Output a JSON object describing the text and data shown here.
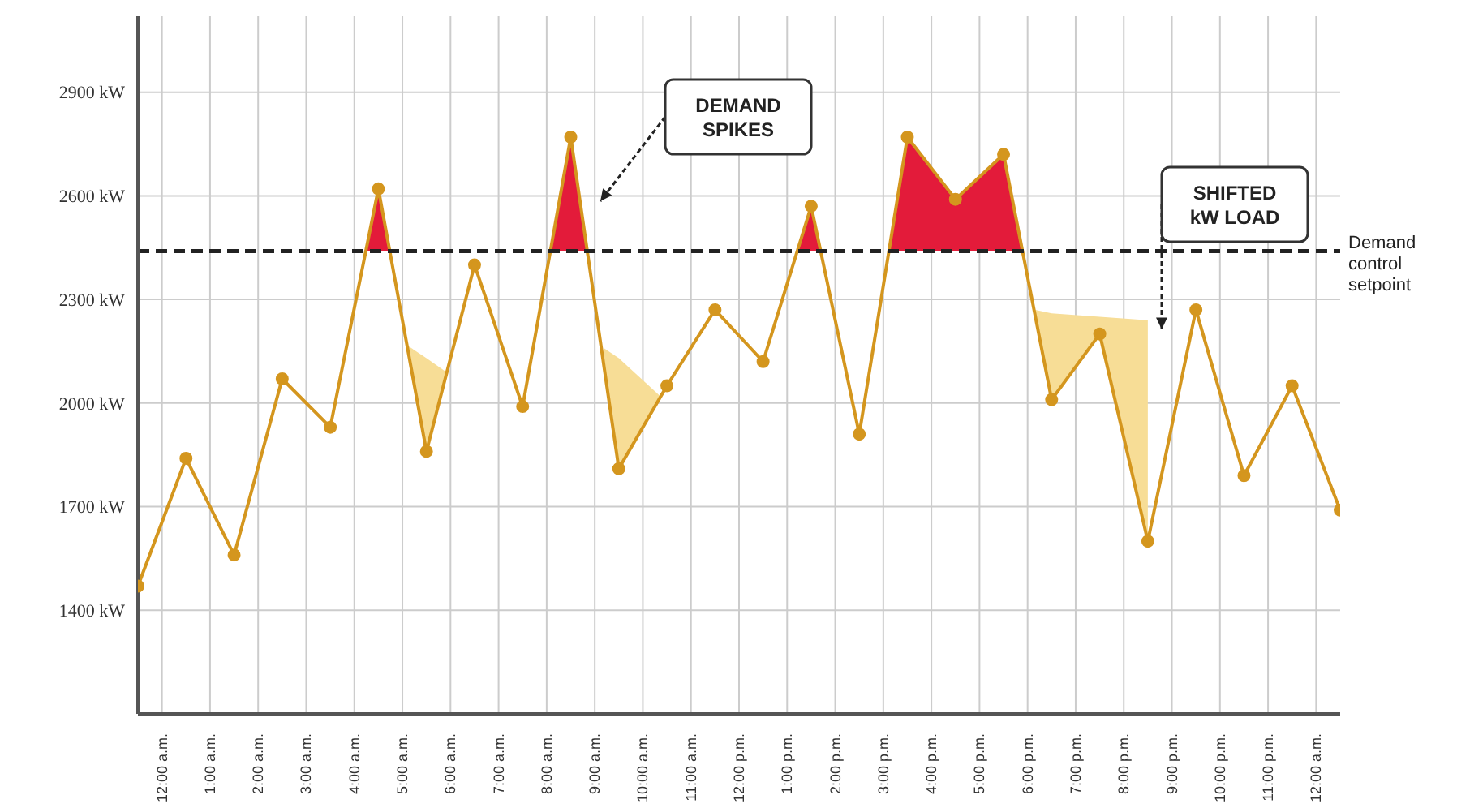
{
  "chart_data": {
    "type": "line",
    "x": [
      -0.5,
      0.5,
      1.5,
      2.5,
      3.5,
      4.5,
      5.5,
      6.5,
      7.5,
      8.5,
      9.5,
      10.5,
      11.5,
      12.5,
      13.5,
      14.5,
      15.5,
      16.5,
      17.5,
      18.5,
      19.5,
      20.5,
      21.5,
      22.5,
      23.5,
      24.5
    ],
    "series": [
      {
        "color": "#d4961e",
        "marker": "circle",
        "values": [
          1470,
          1840,
          1560,
          2070,
          1930,
          2620,
          1860,
          2400,
          1990,
          2770,
          1810,
          2050,
          2270,
          2120,
          2570,
          1910,
          2770,
          2590,
          2720,
          2010,
          2200,
          1600,
          2270,
          1790,
          2050,
          1690
        ]
      },
      {
        "type": "area",
        "color": "#e31b3a",
        "x": [
          4.24,
          4.5,
          4.74
        ],
        "values": [
          2440,
          2620,
          2440
        ]
      },
      {
        "type": "area",
        "color": "#e31b3a",
        "x": [
          8.08,
          8.5,
          8.84
        ],
        "values": [
          2440,
          2770,
          2440
        ]
      },
      {
        "type": "area",
        "color": "#e31b3a",
        "x": [
          13.21,
          13.5,
          13.7
        ],
        "values": [
          2440,
          2570,
          2440
        ]
      },
      {
        "type": "area",
        "color": "#e31b3a",
        "x": [
          15.12,
          15.5,
          16.5,
          17.5,
          17.89
        ],
        "values": [
          2440,
          2770,
          2590,
          2720,
          2440
        ]
      },
      {
        "type": "area",
        "color": "#f7dd96",
        "x": [
          5.07,
          5.5,
          5.91
        ],
        "values": [
          2170,
          2130,
          2090
        ]
      },
      {
        "type": "area",
        "color": "#f7dd96",
        "x": [
          9.18,
          9.5,
          10.36
        ],
        "values": [
          2160,
          2130,
          2020
        ]
      },
      {
        "type": "area",
        "color": "#f7dd96",
        "x": [
          18.16,
          18.5,
          19.5,
          20.5
        ],
        "values": [
          2270,
          2260,
          2250,
          2240
        ]
      }
    ],
    "xlim": [
      -0.5,
      24.5
    ],
    "xticks": [
      {
        "value": 0,
        "label": "12:00 a.m."
      },
      {
        "value": 1,
        "label": "1:00 a.m."
      },
      {
        "value": 2,
        "label": "2:00 a.m."
      },
      {
        "value": 3,
        "label": "3:00 a.m."
      },
      {
        "value": 4,
        "label": "4:00 a.m."
      },
      {
        "value": 5,
        "label": "5:00 a.m."
      },
      {
        "value": 6,
        "label": "6:00 a.m."
      },
      {
        "value": 7,
        "label": "7:00 a.m."
      },
      {
        "value": 8,
        "label": "8:00 a.m."
      },
      {
        "value": 9,
        "label": "9:00 a.m."
      },
      {
        "value": 10,
        "label": "10:00 a.m."
      },
      {
        "value": 11,
        "label": "11:00 a.m."
      },
      {
        "value": 12,
        "label": "12:00 p.m."
      },
      {
        "value": 13,
        "label": "1:00 p.m."
      },
      {
        "value": 14,
        "label": "2:00 p.m."
      },
      {
        "value": 15,
        "label": "3:00 p.m."
      },
      {
        "value": 16,
        "label": "4:00 p.m."
      },
      {
        "value": 17,
        "label": "5:00 p.m."
      },
      {
        "value": 18,
        "label": "6:00 p.m."
      },
      {
        "value": 19,
        "label": "7:00 p.m."
      },
      {
        "value": 20,
        "label": "8:00 p.m."
      },
      {
        "value": 21,
        "label": "9:00 p.m."
      },
      {
        "value": 22,
        "label": "10:00 p.m."
      },
      {
        "value": 23,
        "label": "11:00 p.m."
      },
      {
        "value": 24,
        "label": "12:00 a.m."
      }
    ],
    "ylim": [
      1100,
      3120
    ],
    "yticks": [
      {
        "value": 1400,
        "label": "1400 kW"
      },
      {
        "value": 1700,
        "label": "1700 kW"
      },
      {
        "value": 2000,
        "label": "2000 kW"
      },
      {
        "value": 2300,
        "label": "2300 kW"
      },
      {
        "value": 2600,
        "label": "2600 kW"
      },
      {
        "value": 2900,
        "label": "2900 kW"
      }
    ],
    "ref_lines": [
      {
        "axis": "y",
        "value": 2440,
        "label": "Demand control setpoint",
        "color": "#222222",
        "line_style": "dashed"
      }
    ],
    "annotations": [
      "DEMAND SPIKES",
      "SHIFTED kW LOAD"
    ],
    "grid": true,
    "legend": false
  }
}
